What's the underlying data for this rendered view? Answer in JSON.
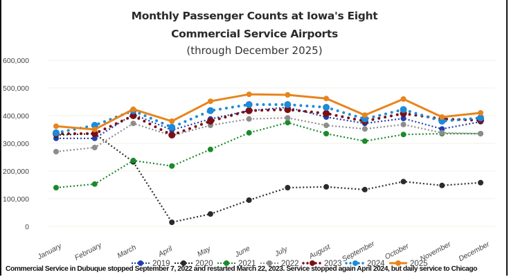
{
  "chart_data": {
    "type": "line",
    "title": "Monthly Passenger Counts at Iowa's Eight",
    "title_line2": "Commercial Service Airports",
    "subtitle": "(through December 2025)",
    "xlabel": "",
    "ylabel": "",
    "ylim": [
      0,
      600000
    ],
    "yticks": [
      0,
      100000,
      200000,
      300000,
      400000,
      500000,
      600000
    ],
    "ytick_labels": [
      "0",
      "100,000",
      "200,000",
      "300,000",
      "400,000",
      "500,000",
      "600,000"
    ],
    "grid": true,
    "legend_position": "bottom",
    "categories": [
      "January",
      "February",
      "March",
      "April",
      "May",
      "June",
      "July",
      "August",
      "September",
      "October",
      "November",
      "December"
    ],
    "series": [
      {
        "name": "2019",
        "color": "#1f3fb0",
        "style": "dotted",
        "values": [
          318000,
          318000,
          405000,
          348000,
          388000,
          418000,
          430000,
          395000,
          372000,
          390000,
          352000,
          378000
        ]
      },
      {
        "name": "2020",
        "color": "#2b2b2b",
        "style": "dotted",
        "values": [
          330000,
          335000,
          233000,
          15000,
          45000,
          95000,
          140000,
          143000,
          133000,
          162000,
          148000,
          158000
        ]
      },
      {
        "name": "2021",
        "color": "#1a8a2a",
        "style": "dotted",
        "values": [
          140000,
          153000,
          238000,
          218000,
          278000,
          338000,
          375000,
          335000,
          308000,
          332000,
          335000,
          335000
        ]
      },
      {
        "name": "2022",
        "color": "#8c8c8c",
        "style": "dotted",
        "values": [
          270000,
          285000,
          372000,
          328000,
          365000,
          388000,
          392000,
          365000,
          352000,
          368000,
          338000,
          335000
        ]
      },
      {
        "name": "2023",
        "color": "#7a0f14",
        "style": "round-dotted",
        "values": [
          335000,
          335000,
          400000,
          330000,
          380000,
          418000,
          422000,
          408000,
          380000,
          408000,
          388000,
          383000
        ]
      },
      {
        "name": "2024",
        "color": "#1e8ad8",
        "style": "round-dotted",
        "values": [
          338000,
          365000,
          418000,
          358000,
          418000,
          440000,
          440000,
          430000,
          388000,
          422000,
          380000,
          392000
        ]
      },
      {
        "name": "2025",
        "color": "#e8841c",
        "style": "solid",
        "values": [
          362000,
          350000,
          423000,
          380000,
          452000,
          477000,
          475000,
          462000,
          402000,
          460000,
          395000,
          410000
        ]
      }
    ]
  },
  "footnote": "Commercial Service in Dubuque stopped September 7, 2022 and restarted March 22, 2023. Service stopped again April 2024, but daily service to Chicago"
}
